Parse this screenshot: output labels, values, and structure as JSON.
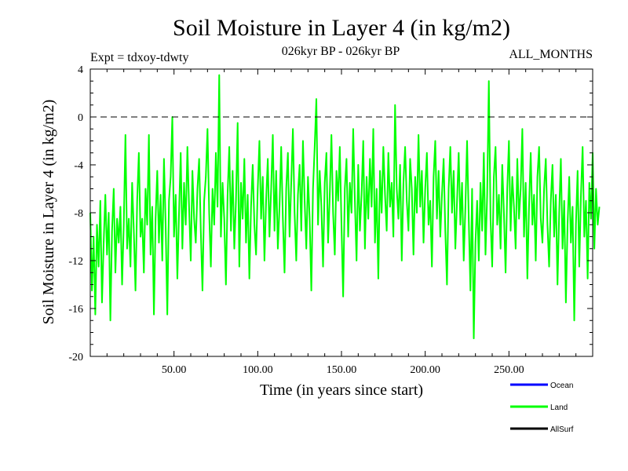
{
  "chart_data": {
    "type": "line",
    "title": "Soil Moisture in Layer 4 (in kg/m2)",
    "subtitle_left": "Expt = tdxoy-tdwty",
    "subtitle_center": "026kyr BP - 026kyr BP",
    "subtitle_right": "ALL_MONTHS",
    "xlabel": "Time (in years since start)",
    "ylabel": "Soil Moisture in Layer 4 (in kg/m2)",
    "xlim": [
      0,
      300
    ],
    "ylim": [
      -20,
      4
    ],
    "x_ticks": [
      {
        "value": 50,
        "label": "50.00"
      },
      {
        "value": 100,
        "label": "100.00"
      },
      {
        "value": 150,
        "label": "150.00"
      },
      {
        "value": 200,
        "label": "200.00"
      },
      {
        "value": 250,
        "label": "250.00"
      }
    ],
    "y_ticks": [
      {
        "value": 4,
        "label": "4"
      },
      {
        "value": 0,
        "label": "0"
      },
      {
        "value": -4,
        "label": "-4"
      },
      {
        "value": -8,
        "label": "-8"
      },
      {
        "value": -12,
        "label": "-12"
      },
      {
        "value": -16,
        "label": "-16"
      },
      {
        "value": -20,
        "label": "-20"
      }
    ],
    "zero_line": true,
    "grid": false,
    "legend_position": "bottom-right",
    "legend": [
      {
        "name": "Ocean",
        "color": "#0000ff"
      },
      {
        "name": "Land",
        "color": "#00ff00"
      },
      {
        "name": "AllSurf",
        "color": "#000000"
      }
    ],
    "series": [
      {
        "name": "Land",
        "color": "#00ff00",
        "x_start": 0,
        "x_step": 1,
        "values": [
          -8.0,
          -14.5,
          -10.0,
          -16.5,
          -9.0,
          -12.5,
          -7.0,
          -15.5,
          -10.5,
          -6.5,
          -11.5,
          -8.0,
          -17.0,
          -9.5,
          -6.0,
          -13.0,
          -8.5,
          -10.5,
          -7.5,
          -14.0,
          -9.0,
          -1.5,
          -11.0,
          -8.5,
          -12.5,
          -5.5,
          -9.5,
          -14.5,
          -7.0,
          -3.0,
          -10.0,
          -8.5,
          -13.0,
          -6.0,
          -9.0,
          -1.5,
          -11.5,
          -7.5,
          -16.5,
          -8.5,
          -4.5,
          -10.5,
          -6.5,
          -12.0,
          -3.5,
          -9.0,
          -16.5,
          -7.0,
          -5.0,
          0.0,
          -10.0,
          -6.5,
          -13.5,
          -8.0,
          -3.0,
          -11.0,
          -5.5,
          -9.0,
          -2.5,
          -7.5,
          -12.0,
          -4.5,
          -8.5,
          -10.5,
          -6.0,
          -3.5,
          -9.5,
          -14.5,
          -7.0,
          -5.0,
          -1.0,
          -8.0,
          -12.5,
          -6.0,
          -9.0,
          -3.0,
          -7.5,
          3.5,
          -10.0,
          -5.5,
          -8.5,
          -14.0,
          -6.5,
          -2.5,
          -9.5,
          -4.5,
          -11.0,
          -7.0,
          -0.5,
          -12.5,
          -5.5,
          -8.5,
          -3.5,
          -10.5,
          -6.5,
          -13.5,
          -7.5,
          -4.0,
          -9.0,
          -11.5,
          -6.0,
          -2.0,
          -8.5,
          -5.0,
          -12.0,
          -7.0,
          -3.5,
          -10.0,
          -6.0,
          -1.5,
          -9.5,
          -4.5,
          -11.0,
          -7.5,
          -2.5,
          -8.5,
          -13.0,
          -6.0,
          -3.0,
          -10.0,
          -5.5,
          -1.0,
          -8.0,
          -12.0,
          -6.5,
          -4.0,
          -9.5,
          -2.0,
          -7.0,
          -11.0,
          -5.0,
          -8.5,
          -14.5,
          -6.0,
          -2.5,
          1.5,
          -9.0,
          -4.5,
          -7.5,
          -12.5,
          -5.5,
          -3.0,
          -10.5,
          -6.5,
          -1.5,
          -8.0,
          -11.5,
          -4.5,
          -7.0,
          -2.5,
          -9.0,
          -15.0,
          -6.0,
          -3.5,
          -10.0,
          -5.5,
          -8.0,
          -1.0,
          -7.0,
          -12.0,
          -4.0,
          -9.5,
          -6.5,
          -2.0,
          -11.0,
          -5.0,
          -8.5,
          -3.5,
          -7.5,
          -1.0,
          -10.5,
          -6.0,
          -13.5,
          -4.5,
          -8.0,
          -2.5,
          -6.5,
          -9.5,
          -3.0,
          -7.5,
          -5.5,
          -10.0,
          1.0,
          -6.0,
          -8.5,
          -4.0,
          -12.0,
          -5.5,
          -2.5,
          -7.0,
          -9.5,
          -3.5,
          -6.0,
          -11.5,
          -5.0,
          -8.0,
          -1.5,
          -7.5,
          -4.5,
          -10.5,
          -6.0,
          -3.0,
          -9.0,
          -7.0,
          -12.5,
          -5.0,
          -2.0,
          -8.5,
          -4.5,
          -10.0,
          -6.5,
          -3.5,
          -9.5,
          -14.0,
          -6.0,
          -2.5,
          -8.0,
          -4.5,
          -11.0,
          -7.0,
          -3.0,
          -9.0,
          -5.5,
          -12.0,
          -7.5,
          -2.0,
          -8.5,
          -14.5,
          -6.0,
          -18.5,
          -10.5,
          -7.0,
          -12.0,
          -5.5,
          -9.5,
          -3.0,
          -11.5,
          -6.5,
          3.0,
          -8.5,
          -12.5,
          -5.0,
          -2.5,
          -9.0,
          -6.5,
          -11.0,
          -4.0,
          -8.0,
          -13.0,
          -6.0,
          -2.0,
          -9.5,
          -5.0,
          -7.5,
          -11.0,
          -3.5,
          -8.5,
          -6.0,
          -1.0,
          -10.0,
          -5.5,
          -13.5,
          -7.5,
          -3.0,
          -9.0,
          -6.5,
          -12.0,
          -5.0,
          -2.5,
          -8.5,
          -10.5,
          -6.0,
          -3.5,
          -9.0,
          -12.5,
          -7.0,
          -4.0,
          -10.0,
          -6.5,
          -14.0,
          -8.0,
          -3.5,
          -11.0,
          -7.0,
          -15.5,
          -9.0,
          -5.0,
          -10.5,
          -7.5,
          -17.0,
          -9.0,
          -4.5,
          -12.5,
          -6.5,
          -2.5,
          -10.0,
          -7.0,
          -13.5,
          -5.5,
          -8.5,
          -3.0,
          -11.0,
          -6.0,
          -9.0,
          -7.5
        ]
      }
    ]
  }
}
